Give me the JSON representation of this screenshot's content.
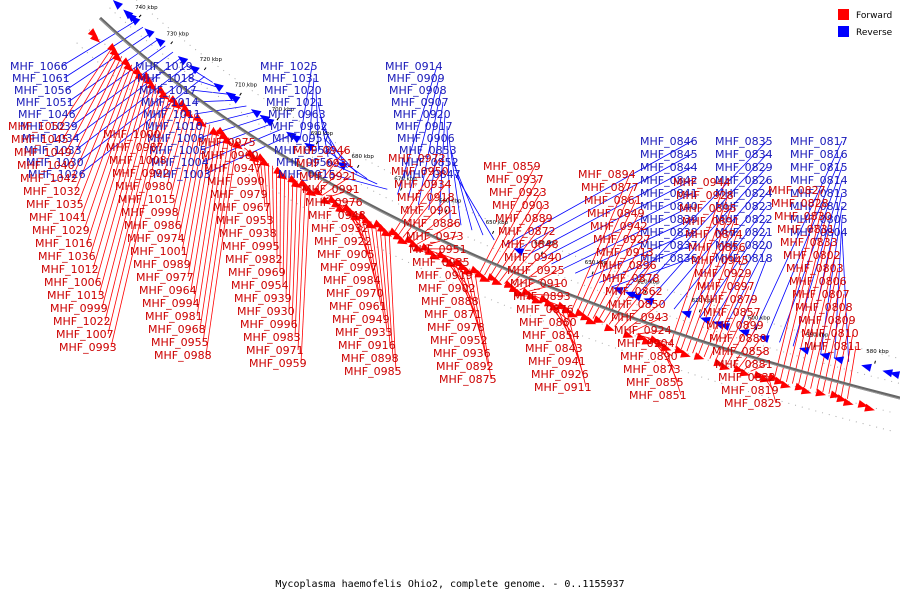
{
  "caption": "Mycoplasma haemofelis Ohio2, complete genome. - 0..1155937",
  "legend": [
    {
      "label": "Forward",
      "color": "#ff0000"
    },
    {
      "label": "Reverse",
      "color": "#0000ff"
    }
  ],
  "colors": {
    "forward": "#ff0000",
    "reverse": "#0000ff",
    "backbone": "#666666",
    "forward_label": "#cc0000",
    "reverse_label": "#1818b8"
  },
  "ticks": [
    "740 kbp",
    "730 kbp",
    "720 kbp",
    "710 kbp",
    "700 kbp",
    "690 kbp",
    "680 kbp",
    "670 kbp",
    "660 kbp",
    "650 kbp",
    "640 kbp",
    "630 kbp",
    "620 kbp",
    "610 kbp",
    "600 kbp",
    "590 kbp",
    "580 kbp"
  ],
  "reverse_labels": [
    "MHF_1066",
    "MHF_1061",
    "MHF_1056",
    "MHF_1051",
    "MHF_1046",
    "MHF_1039",
    "MHF_1034",
    "MHF_1033",
    "MHF_1030",
    "MHF_1026",
    "MHF_1019",
    "MHF_1018",
    "MHF_1017",
    "MHF_1014",
    "MHF_1011",
    "MHF_1010",
    "MHF_1009",
    "MHF_1005",
    "MHF_1004",
    "MHF_1003",
    "MHF_1025",
    "MHF_1031",
    "MHF_1020",
    "MHF_1021",
    "MHF_0963",
    "MHF_0962",
    "MHF_0957",
    "MHF_0958",
    "MHF_0956",
    "MHF_0915",
    "MHF_0914",
    "MHF_0909",
    "MHF_0908",
    "MHF_0907",
    "MHF_0920",
    "MHF_0917",
    "MHF_0906",
    "MHF_0853",
    "MHF_0852",
    "MHF_0847",
    "MHF_0846",
    "MHF_0845",
    "MHF_0844",
    "MHF_0842",
    "MHF_0841",
    "MHF_0840",
    "MHF_0839",
    "MHF_0838",
    "MHF_0837",
    "MHF_0836",
    "MHF_0835",
    "MHF_0834",
    "MHF_0829",
    "MHF_0826",
    "MHF_0824",
    "MHF_0823",
    "MHF_0822",
    "MHF_0821",
    "MHF_0820",
    "MHF_0818",
    "MHF_0817",
    "MHF_0816",
    "MHF_0815",
    "MHF_0814",
    "MHF_0813",
    "MHF_0812",
    "MHF_0805",
    "MHF_0804"
  ],
  "forward_labels": [
    "MHF_1052",
    "MHF_1045",
    "MHF_1049",
    "MHF_1040",
    "MHF_1042",
    "MHF_1032",
    "MHF_1035",
    "MHF_1041",
    "MHF_1029",
    "MHF_1016",
    "MHF_1036",
    "MHF_1012",
    "MHF_1006",
    "MHF_1013",
    "MHF_0999",
    "MHF_1022",
    "MHF_1007",
    "MHF_0993",
    "MHF_1000",
    "MHF_0987",
    "MHF_1008",
    "MHF_0992",
    "MHF_0980",
    "MHF_1015",
    "MHF_0998",
    "MHF_0986",
    "MHF_0974",
    "MHF_1001",
    "MHF_0989",
    "MHF_0977",
    "MHF_0964",
    "MHF_0994",
    "MHF_0981",
    "MHF_0968",
    "MHF_0955",
    "MHF_0988",
    "MHF_0975",
    "MHF_0960",
    "MHF_0947",
    "MHF_0990",
    "MHF_0979",
    "MHF_0967",
    "MHF_0953",
    "MHF_0938",
    "MHF_0995",
    "MHF_0982",
    "MHF_0969",
    "MHF_0954",
    "MHF_0939",
    "MHF_0930",
    "MHF_0996",
    "MHF_0983",
    "MHF_0971",
    "MHF_0959",
    "MHF_0946",
    "MHF_0931",
    "MHF_0921",
    "MHF_0991",
    "MHF_0976",
    "MHF_0948",
    "MHF_0932",
    "MHF_0922",
    "MHF_0905",
    "MHF_0997",
    "MHF_0984",
    "MHF_0970",
    "MHF_0961",
    "MHF_0949",
    "MHF_0933",
    "MHF_0916",
    "MHF_0898",
    "MHF_0985",
    "MHF_0972",
    "MHF_0950",
    "MHF_0934",
    "MHF_0918",
    "MHF_0901",
    "MHF_0886",
    "MHF_0973",
    "MHF_0951",
    "MHF_0935",
    "MHF_0919",
    "MHF_0902",
    "MHF_0888",
    "MHF_0871",
    "MHF_0978",
    "MHF_0952",
    "MHF_0936",
    "MHF_0892",
    "MHF_0875",
    "MHF_0859",
    "MHF_0937",
    "MHF_0923",
    "MHF_0903",
    "MHF_0889",
    "MHF_0872",
    "MHF_0848",
    "MHF_0940",
    "MHF_0925",
    "MHF_0910",
    "MHF_0893",
    "MHF_0876",
    "MHF_0860",
    "MHF_0854",
    "MHF_0843",
    "MHF_0941",
    "MHF_0926",
    "MHF_0911",
    "MHF_0894",
    "MHF_0877",
    "MHF_0861",
    "MHF_0849",
    "MHF_0942",
    "MHF_0927",
    "MHF_0913",
    "MHF_0896",
    "MHF_0878",
    "MHF_0862",
    "MHF_0850",
    "MHF_0943",
    "MHF_0924",
    "MHF_0904",
    "MHF_0890",
    "MHF_0873",
    "MHF_0855",
    "MHF_0851",
    "MHF_0944",
    "MHF_0928",
    "MHF_0895",
    "MHF_0891",
    "MHF_0874",
    "MHF_0856",
    "MHF_0945",
    "MHF_0929",
    "MHF_0897",
    "MHF_0879",
    "MHF_0857",
    "MHF_0899",
    "MHF_0880",
    "MHF_0858",
    "MHF_0881",
    "MHF_0832",
    "MHF_0819",
    "MHF_0825",
    "MHF_0827",
    "MHF_0828",
    "MHF_0830",
    "MHF_0831",
    "MHF_0833",
    "MHF_0802",
    "MHF_0803",
    "MHF_0806",
    "MHF_0807",
    "MHF_0808",
    "MHF_0809",
    "MHF_0810",
    "MHF_0811"
  ]
}
